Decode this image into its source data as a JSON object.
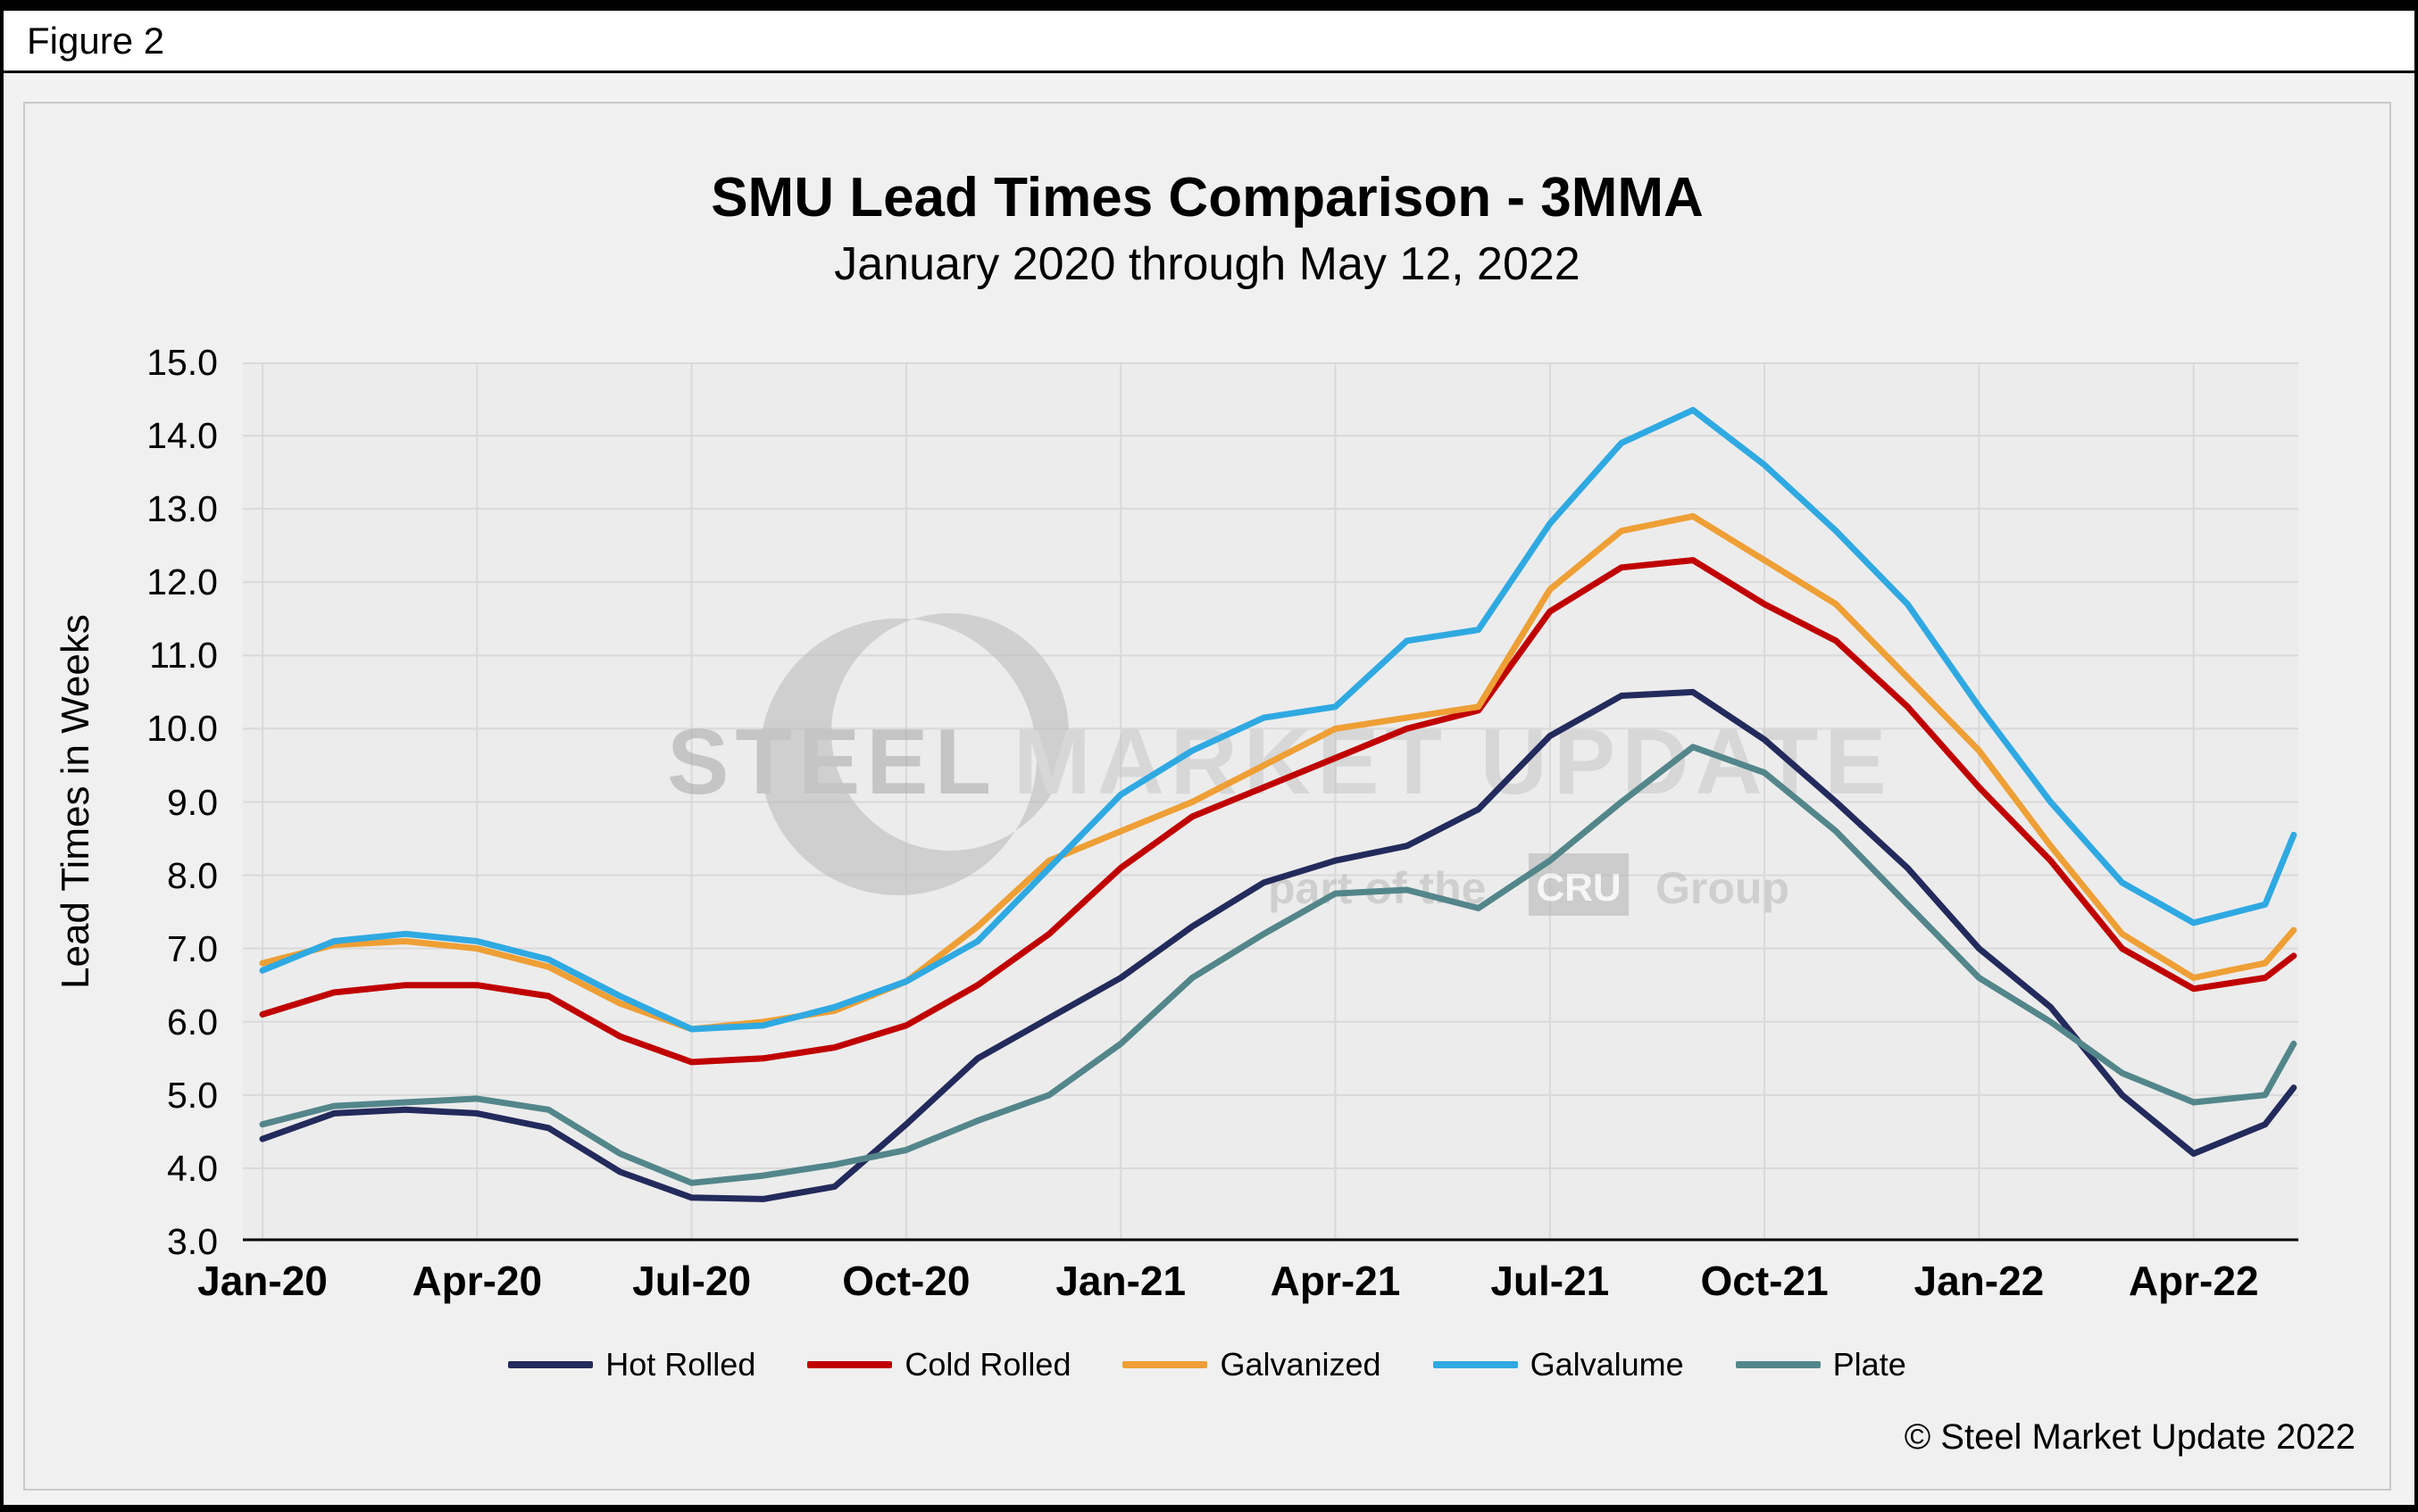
{
  "figure_label": "Figure 2",
  "chart_data": {
    "type": "line",
    "title": "SMU Lead Times Comparison - 3MMA",
    "subtitle": "January 2020 through May 12, 2022",
    "ylabel": "Lead Times in Weeks",
    "ylim": [
      3.0,
      15.0
    ],
    "ytick_step": 1.0,
    "ytick_labels": [
      "3.0",
      "4.0",
      "5.0",
      "6.0",
      "7.0",
      "8.0",
      "9.0",
      "10.0",
      "11.0",
      "12.0",
      "13.0",
      "14.0",
      "15.0"
    ],
    "x_unit": "months since Jan-2020",
    "xtick_positions": [
      0,
      3,
      6,
      9,
      12,
      15,
      18,
      21,
      24,
      27
    ],
    "xtick_labels": [
      "Jan-20",
      "Apr-20",
      "Jul-20",
      "Oct-20",
      "Jan-21",
      "Apr-21",
      "Jul-21",
      "Oct-21",
      "Jan-22",
      "Apr-22"
    ],
    "grid": true,
    "grid_color": "#d9d9d9",
    "axis_color": "#000000",
    "plot_bg": "#ececec",
    "legend_position": "bottom",
    "x": [
      0,
      1,
      2,
      3,
      4,
      5,
      6,
      7,
      8,
      9,
      10,
      11,
      12,
      13,
      14,
      15,
      16,
      17,
      18,
      19,
      20,
      21,
      22,
      23,
      24,
      25,
      26,
      27,
      28,
      28.4
    ],
    "series": [
      {
        "name": "Hot Rolled",
        "color": "#232a5c",
        "values": [
          4.4,
          4.75,
          4.8,
          4.75,
          4.55,
          3.95,
          3.6,
          3.58,
          3.75,
          4.6,
          5.5,
          6.05,
          6.6,
          7.3,
          7.9,
          8.2,
          8.4,
          8.9,
          9.9,
          10.45,
          10.5,
          9.85,
          9.0,
          8.1,
          7.0,
          6.2,
          5.0,
          4.2,
          4.6,
          5.1
        ]
      },
      {
        "name": "Cold Rolled",
        "color": "#c00000",
        "values": [
          6.1,
          6.4,
          6.5,
          6.5,
          6.35,
          5.8,
          5.45,
          5.5,
          5.65,
          5.95,
          6.5,
          7.2,
          8.1,
          8.8,
          9.2,
          9.6,
          10.0,
          10.25,
          11.6,
          12.2,
          12.3,
          11.7,
          11.2,
          10.3,
          9.2,
          8.2,
          7.0,
          6.45,
          6.6,
          6.9
        ]
      },
      {
        "name": "Galvanized",
        "color": "#ee9f35",
        "values": [
          6.8,
          7.05,
          7.1,
          7.0,
          6.75,
          6.25,
          5.9,
          6.0,
          6.15,
          6.55,
          7.3,
          8.2,
          8.6,
          9.0,
          9.5,
          10.0,
          10.15,
          10.3,
          11.9,
          12.7,
          12.9,
          12.3,
          11.7,
          10.7,
          9.7,
          8.4,
          7.2,
          6.6,
          6.8,
          7.25
        ]
      },
      {
        "name": "Galvalume",
        "color": "#2fa9e2",
        "values": [
          6.7,
          7.1,
          7.2,
          7.1,
          6.85,
          6.35,
          5.9,
          5.95,
          6.2,
          6.55,
          7.1,
          8.1,
          9.1,
          9.7,
          10.15,
          10.3,
          11.2,
          11.35,
          12.8,
          13.9,
          14.35,
          13.6,
          12.7,
          11.7,
          10.3,
          9.0,
          7.9,
          7.35,
          7.6,
          8.55
        ]
      },
      {
        "name": "Plate",
        "color": "#53868b",
        "values": [
          4.6,
          4.85,
          4.9,
          4.95,
          4.8,
          4.2,
          3.8,
          3.9,
          4.05,
          4.25,
          4.65,
          5.0,
          5.7,
          6.6,
          7.2,
          7.75,
          7.8,
          7.55,
          8.2,
          9.0,
          9.75,
          9.4,
          8.6,
          7.6,
          6.6,
          6.0,
          5.3,
          4.9,
          5.0,
          5.7
        ]
      }
    ]
  },
  "watermark": {
    "brand_strong": "STEEL",
    "brand_light": "MARKET UPDATE",
    "tagline_prefix": "part of the",
    "tagline_box": "CRU",
    "tagline_suffix": "Group",
    "color": "#b9b9b9",
    "box_color": "#b3b3b3"
  },
  "footer": {
    "copyright": "© Steel Market Update 2022"
  }
}
